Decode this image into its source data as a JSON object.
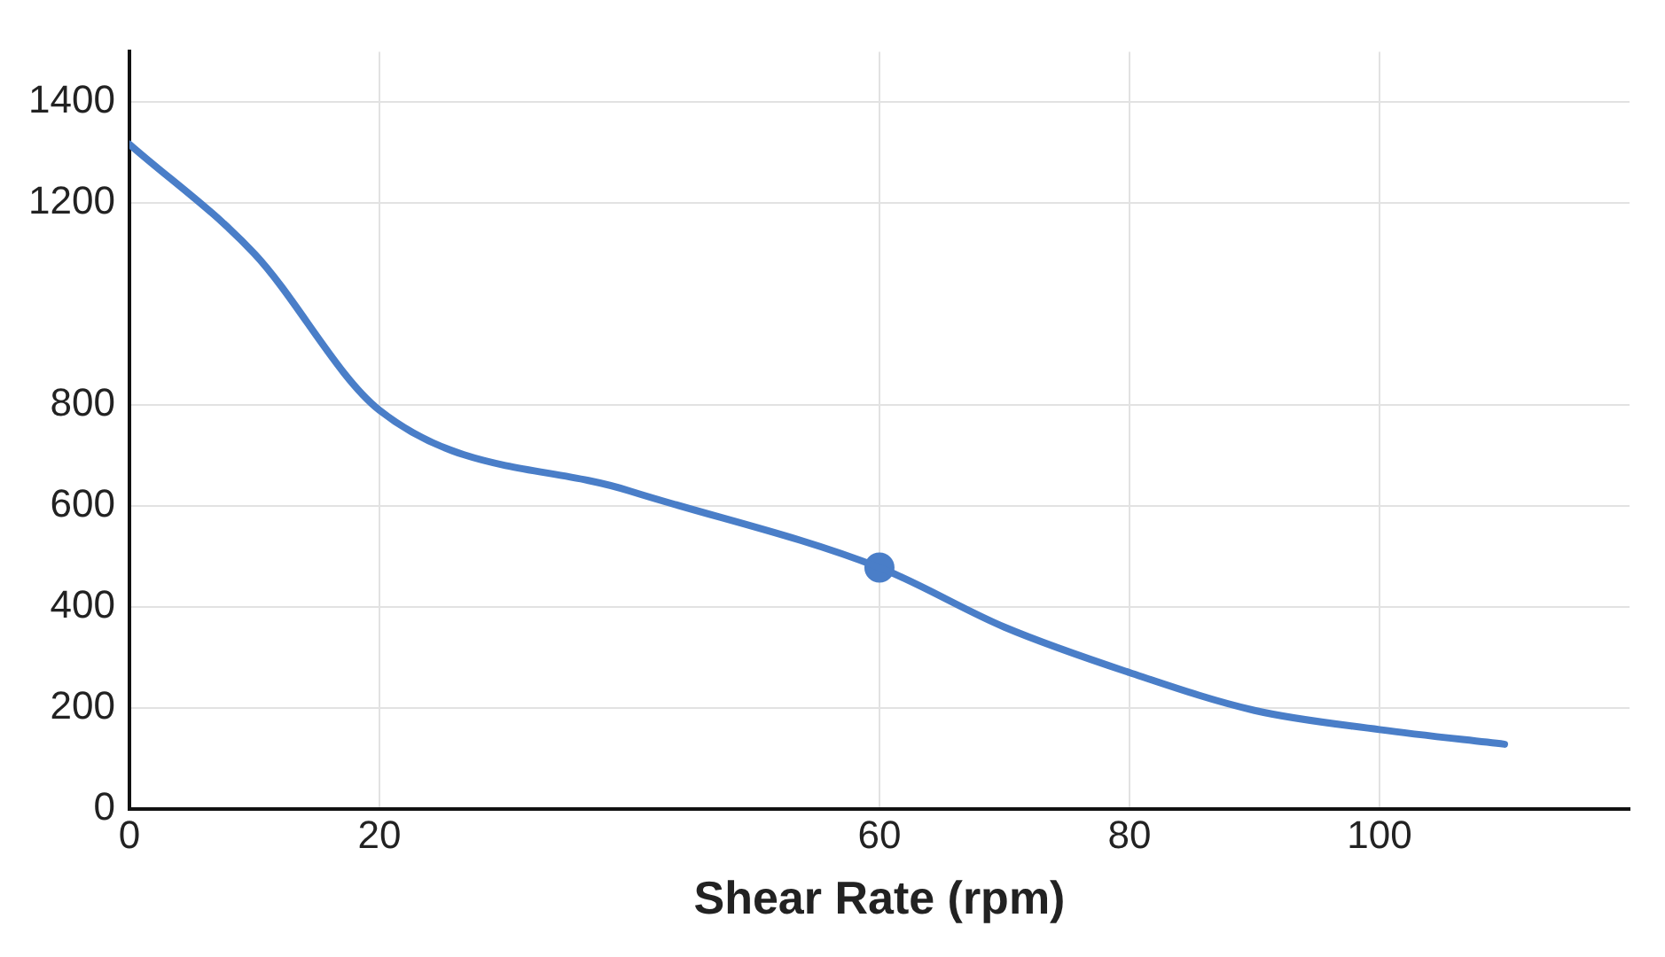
{
  "chart_data": {
    "type": "line",
    "xlabel": "Shear Rate (rpm)",
    "xlim": [
      0,
      120
    ],
    "xticks": [
      0,
      20,
      60,
      80,
      100
    ],
    "ylim": [
      0,
      1500
    ],
    "yticks": [
      0,
      200,
      400,
      600,
      800,
      1200,
      1400
    ],
    "grid": true,
    "legend": false,
    "series": [
      {
        "type": "line",
        "color": "#4a7ec8",
        "marker": "none",
        "x": [
          0,
          10,
          20,
          40,
          60,
          70,
          80,
          90,
          100,
          110
        ],
        "values": [
          1317,
          1100,
          790,
          630,
          478,
          360,
          270,
          195,
          157,
          128
        ]
      },
      {
        "type": "scatter",
        "color": "#4a7ec8",
        "marker": "circle",
        "x": [
          60
        ],
        "values": [
          478
        ]
      }
    ]
  }
}
